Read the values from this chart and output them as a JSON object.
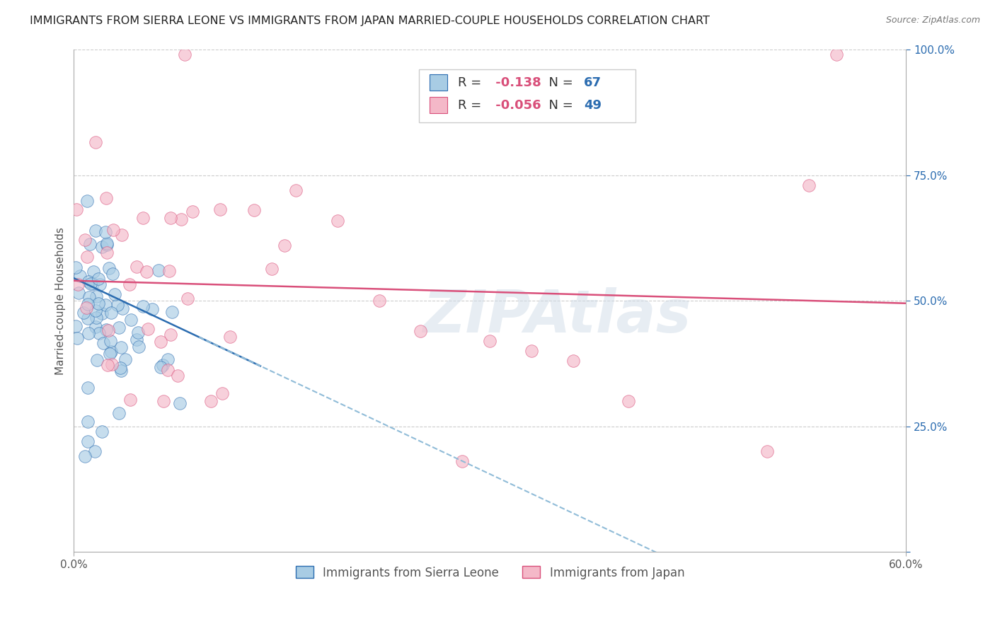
{
  "title": "IMMIGRANTS FROM SIERRA LEONE VS IMMIGRANTS FROM JAPAN MARRIED-COUPLE HOUSEHOLDS CORRELATION CHART",
  "source": "Source: ZipAtlas.com",
  "ylabel": "Married-couple Households",
  "legend_label1": "Immigrants from Sierra Leone",
  "legend_label2": "Immigrants from Japan",
  "R1": -0.138,
  "N1": 67,
  "R2": -0.056,
  "N2": 49,
  "color1": "#a8cce4",
  "color2": "#f4b8c8",
  "trendline1_solid_color": "#2b6cb0",
  "trendline1_dash_color": "#90bcd8",
  "trendline2_color": "#d94f7a",
  "background_color": "#ffffff",
  "grid_color": "#cccccc",
  "xmin": 0.0,
  "xmax": 0.6,
  "ymin": 0.0,
  "ymax": 1.0,
  "watermark": "ZIPAtlas",
  "title_fontsize": 11.5,
  "axis_fontsize": 11,
  "tick_fontsize": 11,
  "legend_R_color": "#d94f7a",
  "legend_N_color": "#2b6cb0",
  "legend_text_color": "#333333",
  "tick_color": "#555555",
  "source_color": "#777777"
}
